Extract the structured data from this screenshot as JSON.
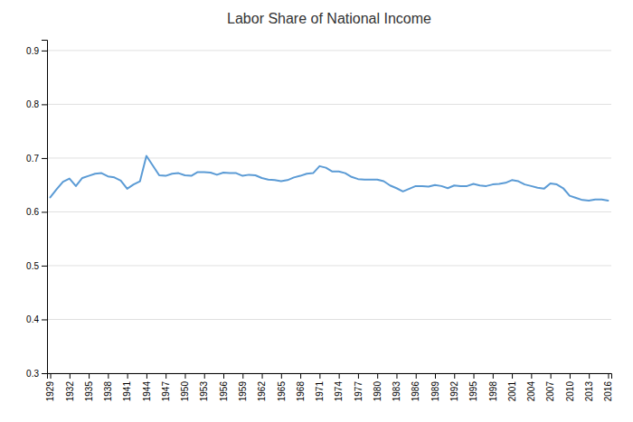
{
  "chart_data": {
    "type": "line",
    "title": "Labor Share of National Income",
    "color": "#5B9BD5",
    "x": [
      1929,
      1930,
      1931,
      1932,
      1933,
      1934,
      1935,
      1936,
      1937,
      1938,
      1939,
      1940,
      1941,
      1942,
      1943,
      1944,
      1945,
      1946,
      1947,
      1948,
      1949,
      1950,
      1951,
      1952,
      1953,
      1954,
      1955,
      1956,
      1957,
      1958,
      1959,
      1960,
      1961,
      1962,
      1963,
      1964,
      1965,
      1966,
      1967,
      1968,
      1969,
      1970,
      1971,
      1972,
      1973,
      1974,
      1975,
      1976,
      1977,
      1978,
      1979,
      1980,
      1981,
      1982,
      1983,
      1984,
      1985,
      1986,
      1987,
      1988,
      1989,
      1990,
      1991,
      1992,
      1993,
      1994,
      1995,
      1996,
      1997,
      1998,
      1999,
      2000,
      2001,
      2002,
      2003,
      2004,
      2005,
      2006,
      2007,
      2008,
      2009,
      2010,
      2011,
      2012,
      2013,
      2014,
      2015,
      2016
    ],
    "values": [
      0.627,
      0.642,
      0.656,
      0.662,
      0.648,
      0.663,
      0.667,
      0.671,
      0.672,
      0.666,
      0.664,
      0.658,
      0.643,
      0.651,
      0.657,
      0.704,
      0.686,
      0.668,
      0.667,
      0.671,
      0.672,
      0.668,
      0.667,
      0.674,
      0.674,
      0.673,
      0.669,
      0.673,
      0.672,
      0.672,
      0.667,
      0.669,
      0.668,
      0.663,
      0.66,
      0.659,
      0.657,
      0.659,
      0.664,
      0.667,
      0.671,
      0.672,
      0.685,
      0.682,
      0.675,
      0.675,
      0.672,
      0.665,
      0.661,
      0.66,
      0.66,
      0.66,
      0.657,
      0.649,
      0.644,
      0.638,
      0.643,
      0.648,
      0.648,
      0.647,
      0.65,
      0.648,
      0.644,
      0.649,
      0.648,
      0.648,
      0.652,
      0.649,
      0.648,
      0.651,
      0.652,
      0.654,
      0.659,
      0.657,
      0.651,
      0.648,
      0.645,
      0.643,
      0.653,
      0.651,
      0.644,
      0.63,
      0.626,
      0.622,
      0.621,
      0.623,
      0.623,
      0.621
    ],
    "xlim": [
      1928.5,
      2016.5
    ],
    "xticks": [
      1929,
      1932,
      1935,
      1938,
      1941,
      1944,
      1947,
      1950,
      1953,
      1956,
      1959,
      1962,
      1965,
      1968,
      1971,
      1974,
      1977,
      1980,
      1983,
      1986,
      1989,
      1992,
      1995,
      1998,
      2001,
      2004,
      2007,
      2010,
      2013,
      2016
    ],
    "ylim": [
      0.3,
      0.92
    ],
    "yticks": [
      0.3,
      0.4,
      0.5,
      0.6,
      0.7,
      0.8,
      0.9
    ],
    "grid": "y"
  }
}
